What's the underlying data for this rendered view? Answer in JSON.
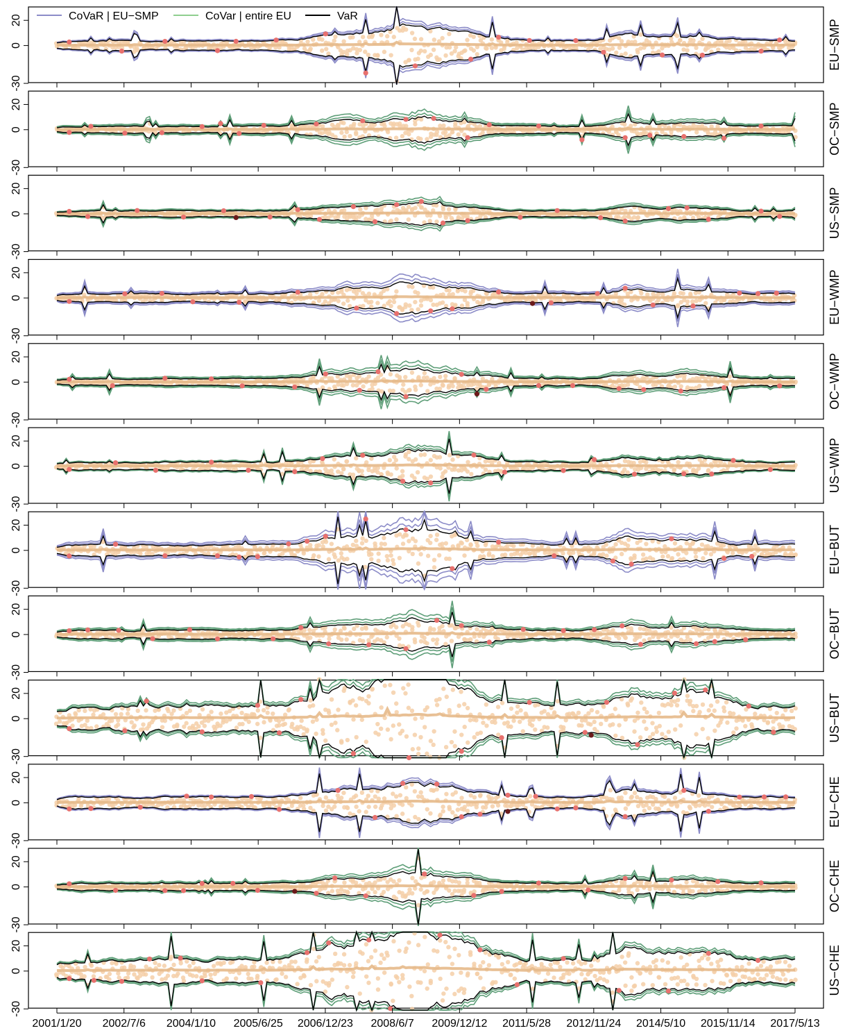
{
  "chart_data": {
    "type": "line",
    "x_tick_labels": [
      "2001/1/20",
      "2002/7/6",
      "2004/1/10",
      "2005/6/25",
      "2006/12/23",
      "2008/6/7",
      "2009/12/12",
      "2011/5/28",
      "2012/11/24",
      "2014/5/10",
      "2015/11/14",
      "2017/5/13"
    ],
    "y_tick_labels": [
      "20",
      "0",
      "-30"
    ],
    "ylim": [
      -30,
      30
    ],
    "legend": {
      "placement": "top-left",
      "entries": [
        {
          "label": "CoVaR | EU−SMP",
          "color": "#8c8cc8"
        },
        {
          "label": "CoVar | entire EU",
          "color": "#8fce8f"
        },
        {
          "label": "VaR",
          "color": "#000000"
        }
      ]
    },
    "colors": {
      "covar_eu_smp": "#8c8cc8",
      "covar_entire_eu": "#5e9e78",
      "var": "#000000",
      "returns": "#f5cfa8",
      "exceedance": "#e8716e",
      "joint_exceedance": "#6b1a1a",
      "mean_band": "#e6b98a"
    },
    "panels": [
      {
        "label": "EU−SMP",
        "covar_type": "eu_smp",
        "base": 3.5,
        "spread": 0.7,
        "seed": 11
      },
      {
        "label": "OC−SMP",
        "covar_type": "entire_eu",
        "base": 2.5,
        "spread": 1.5,
        "seed": 23
      },
      {
        "label": "US−SMP",
        "covar_type": "entire_eu",
        "base": 2.0,
        "spread": 1.2,
        "seed": 37
      },
      {
        "label": "EU−WMP",
        "covar_type": "eu_smp",
        "base": 3.0,
        "spread": 1.4,
        "seed": 41
      },
      {
        "label": "OC−WMP",
        "covar_type": "entire_eu",
        "base": 2.5,
        "spread": 1.5,
        "seed": 53
      },
      {
        "label": "US−WMP",
        "covar_type": "entire_eu",
        "base": 3.0,
        "spread": 0.8,
        "seed": 67
      },
      {
        "label": "EU−BUT",
        "covar_type": "eu_smp",
        "base": 4.0,
        "spread": 1.5,
        "seed": 71
      },
      {
        "label": "OC−BUT",
        "covar_type": "entire_eu",
        "base": 3.0,
        "spread": 1.4,
        "seed": 83
      },
      {
        "label": "US−BUT",
        "covar_type": "entire_eu",
        "base": 9.0,
        "spread": 0.7,
        "seed": 97
      },
      {
        "label": "EU−CHE",
        "covar_type": "eu_smp",
        "base": 4.0,
        "spread": 0.6,
        "seed": 101
      },
      {
        "label": "OC−CHE",
        "covar_type": "entire_eu",
        "base": 2.5,
        "spread": 1.3,
        "seed": 113
      },
      {
        "label": "US−CHE",
        "covar_type": "entire_eu",
        "base": 8.0,
        "spread": 0.6,
        "seed": 127
      }
    ]
  }
}
